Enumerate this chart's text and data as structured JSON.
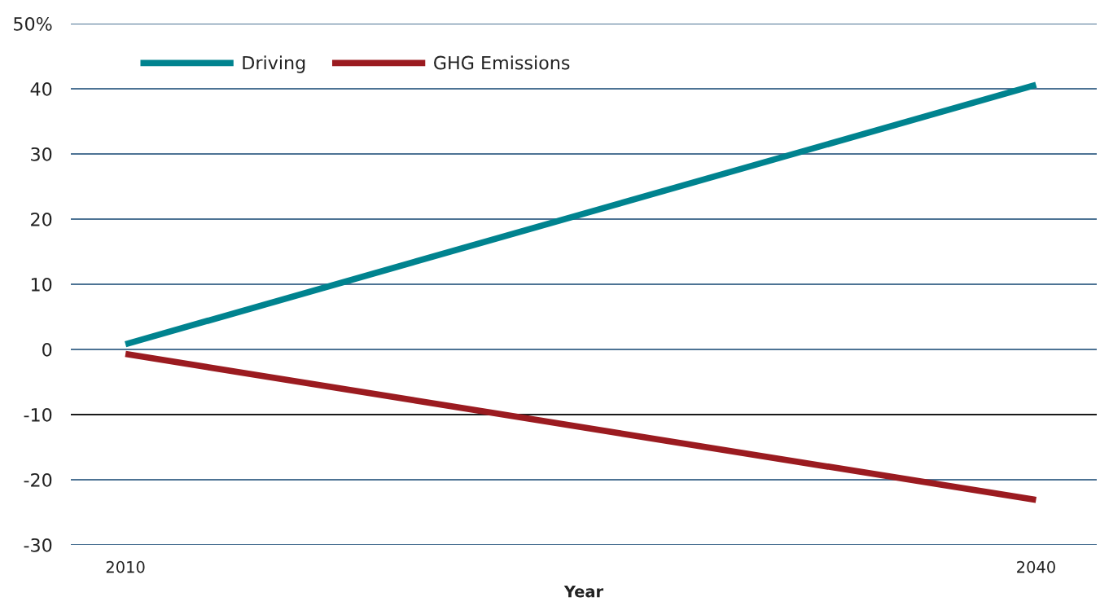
{
  "chart_data": {
    "type": "line",
    "x": [
      2010,
      2040
    ],
    "series": [
      {
        "name": "Driving",
        "color": "#00838f",
        "values": [
          0.8,
          40.6
        ]
      },
      {
        "name": "GHG Emissions",
        "color": "#9b1b20",
        "values": [
          -0.7,
          -23.1
        ]
      }
    ],
    "xlabel": "Year",
    "xlim": [
      2008.2,
      2042
    ],
    "xticks": [
      2010,
      2040
    ],
    "ylim": [
      -30,
      50
    ],
    "yticks": [
      -30,
      -20,
      -10,
      0,
      10,
      20,
      30,
      40,
      {
        "value": 50,
        "label": "50%"
      }
    ],
    "ref_lines": [
      {
        "axis": "y",
        "value": -10,
        "color": "#1a1a1a"
      }
    ],
    "grid": "y",
    "legend": "top left",
    "marker": "none",
    "line_style": "solid"
  }
}
